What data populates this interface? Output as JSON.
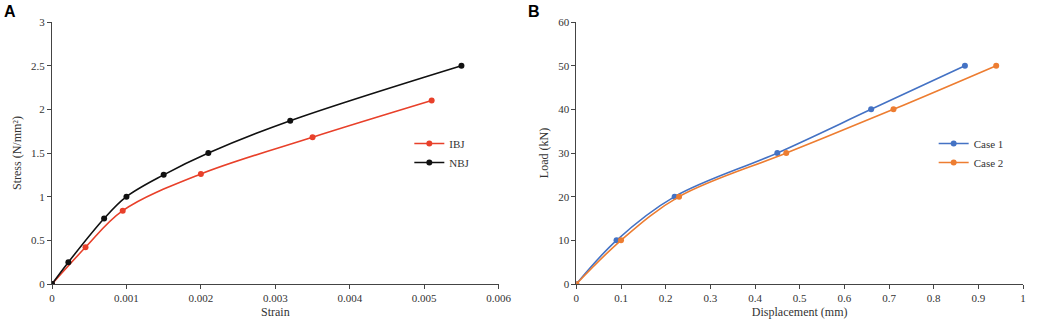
{
  "chart_data": [
    {
      "type": "line",
      "label": "A",
      "x_title": "Strain",
      "y_title": "Stress (N/mm²)",
      "xlim": [
        0,
        0.006
      ],
      "xticks": [
        0,
        0.001,
        0.002,
        0.003,
        0.004,
        0.005,
        0.006
      ],
      "ylim": [
        0,
        3
      ],
      "yticks": [
        0,
        0.5,
        1,
        1.5,
        2,
        2.5,
        3
      ],
      "grid": false,
      "legend": "right",
      "marker": "circle",
      "line_style": "smooth",
      "series": [
        {
          "name": "IBJ",
          "color": "#e8402a",
          "x": [
            0,
            0.00045,
            0.00095,
            0.002,
            0.0035,
            0.0051
          ],
          "values": [
            0,
            0.42,
            0.84,
            1.26,
            1.68,
            2.1
          ]
        },
        {
          "name": "NBJ",
          "color": "#111111",
          "x": [
            0,
            0.00022,
            0.0007,
            0.001,
            0.0015,
            0.0021,
            0.0032,
            0.0055
          ],
          "values": [
            0,
            0.25,
            0.75,
            1.0,
            1.25,
            1.5,
            1.87,
            2.5
          ]
        }
      ]
    },
    {
      "type": "line",
      "label": "B",
      "x_title": "Displacement (mm)",
      "y_title": "Load (kN)",
      "xlim": [
        0,
        1
      ],
      "xticks": [
        0,
        0.1,
        0.2,
        0.3,
        0.4,
        0.5,
        0.6,
        0.7,
        0.8,
        0.9,
        1
      ],
      "ylim": [
        0,
        60
      ],
      "yticks": [
        0,
        10,
        20,
        30,
        40,
        50,
        60
      ],
      "grid": false,
      "legend": "right",
      "marker": "circle",
      "line_style": "smooth",
      "series": [
        {
          "name": "Case 1",
          "color": "#4472c4",
          "x": [
            0,
            0.09,
            0.22,
            0.45,
            0.66,
            0.87
          ],
          "values": [
            0,
            10,
            20,
            30,
            40,
            50
          ]
        },
        {
          "name": "Case 2",
          "color": "#ed7d31",
          "x": [
            0,
            0.1,
            0.23,
            0.47,
            0.71,
            0.94
          ],
          "values": [
            0,
            10,
            20,
            30,
            40,
            50
          ]
        }
      ]
    }
  ]
}
